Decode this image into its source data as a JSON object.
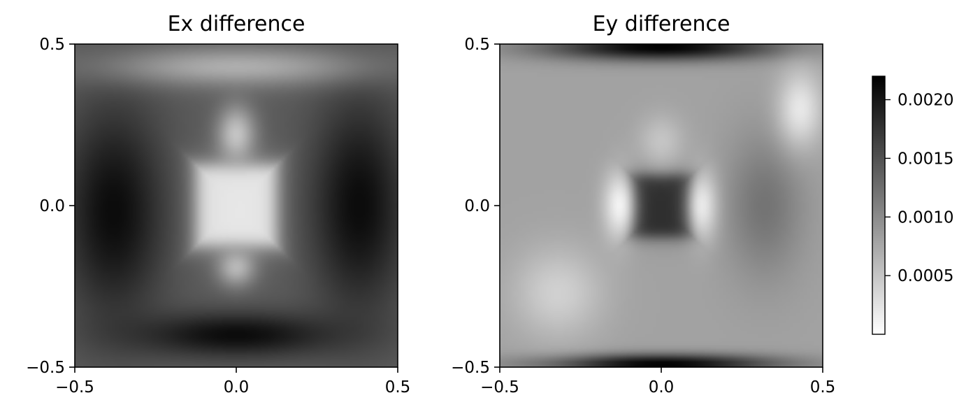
{
  "chart_data": [
    {
      "type": "heatmap",
      "title": "Ex difference",
      "xlabel": "",
      "ylabel": "",
      "xlim": [
        -0.5,
        0.5
      ],
      "ylim": [
        -0.5,
        0.5
      ],
      "xticks": [
        "−0.5",
        "0.0",
        "0.5"
      ],
      "yticks": [
        "−0.5",
        "0.0",
        "0.5"
      ],
      "colormap": "gray_r",
      "field_features": [
        {
          "name": "central-square",
          "kind": "box",
          "x": 0.0,
          "y": 0.0,
          "half": 0.13,
          "value": 0.0002
        },
        {
          "name": "upper-lobe",
          "kind": "blob",
          "x": 0.0,
          "y": 0.22,
          "rx": 0.06,
          "ry": 0.09,
          "value": 0.0005
        },
        {
          "name": "lower-lobe",
          "kind": "blob",
          "x": 0.0,
          "y": -0.19,
          "rx": 0.06,
          "ry": 0.06,
          "value": 0.0006
        },
        {
          "name": "left-dark-band",
          "kind": "blob",
          "x": -0.38,
          "y": -0.02,
          "rx": 0.16,
          "ry": 0.33,
          "value": 0.0021
        },
        {
          "name": "right-dark-band",
          "kind": "blob",
          "x": 0.38,
          "y": 0.0,
          "rx": 0.15,
          "ry": 0.33,
          "value": 0.0021
        },
        {
          "name": "bottom-dark-arc",
          "kind": "blob",
          "x": 0.0,
          "y": -0.4,
          "rx": 0.32,
          "ry": 0.07,
          "value": 0.0021
        },
        {
          "name": "top-light-arc",
          "kind": "blob",
          "x": 0.0,
          "y": 0.43,
          "rx": 0.4,
          "ry": 0.06,
          "value": 0.0007
        }
      ],
      "background_value": 0.0014
    },
    {
      "type": "heatmap",
      "title": "Ey difference",
      "xlabel": "",
      "ylabel": "",
      "xlim": [
        -0.5,
        0.5
      ],
      "ylim": [
        -0.5,
        0.5
      ],
      "xticks": [
        "−0.5",
        "0.0",
        "0.5"
      ],
      "yticks": [
        "−0.5",
        "0.0",
        "0.5"
      ],
      "colormap": "gray_r",
      "field_features": [
        {
          "name": "central-dark-square",
          "kind": "box",
          "x": 0.0,
          "y": 0.0,
          "half": 0.1,
          "value": 0.0018
        },
        {
          "name": "left-bright-halo",
          "kind": "blob",
          "x": -0.13,
          "y": 0.0,
          "rx": 0.05,
          "ry": 0.11,
          "value": 0.0001
        },
        {
          "name": "right-bright-halo",
          "kind": "blob",
          "x": 0.13,
          "y": 0.0,
          "rx": 0.05,
          "ry": 0.11,
          "value": 0.0001
        },
        {
          "name": "upper-lobe",
          "kind": "blob",
          "x": 0.0,
          "y": 0.2,
          "rx": 0.07,
          "ry": 0.08,
          "value": 0.0005
        },
        {
          "name": "right-gray-lens",
          "kind": "blob",
          "x": 0.32,
          "y": 0.0,
          "rx": 0.12,
          "ry": 0.22,
          "value": 0.0012
        },
        {
          "name": "top-dark-band",
          "kind": "blob",
          "x": 0.0,
          "y": 0.49,
          "rx": 0.36,
          "ry": 0.04,
          "value": 0.0022
        },
        {
          "name": "bottom-dark-band",
          "kind": "blob",
          "x": 0.0,
          "y": -0.49,
          "rx": 0.36,
          "ry": 0.03,
          "value": 0.0022
        },
        {
          "name": "lower-left-light",
          "kind": "blob",
          "x": -0.32,
          "y": -0.27,
          "rx": 0.14,
          "ry": 0.14,
          "value": 0.0004
        },
        {
          "name": "upper-right-light",
          "kind": "blob",
          "x": 0.43,
          "y": 0.3,
          "rx": 0.07,
          "ry": 0.12,
          "value": 0.0002
        }
      ],
      "background_value": 0.0008
    }
  ],
  "colorbar": {
    "vmin": 0.0,
    "vmax": 0.0022,
    "ticks": [
      0.0005,
      0.001,
      0.0015,
      0.002
    ],
    "tick_labels": [
      "0.0005",
      "0.0010",
      "0.0015",
      "0.0020"
    ],
    "colormap": "gray_r"
  }
}
